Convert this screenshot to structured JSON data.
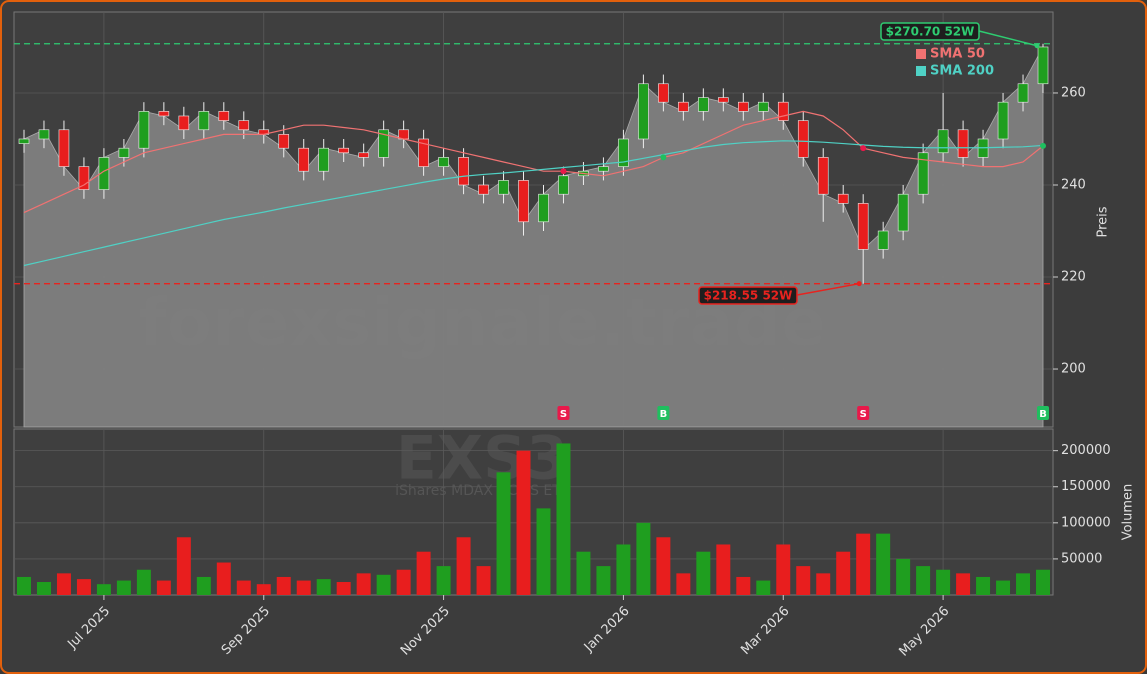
{
  "chart_data": {
    "type": "candlestick",
    "title": "EXS3",
    "subtitle": "iShares MDAX UCITS ETF",
    "watermark": "forexsignale.trade",
    "categories": [
      null,
      null,
      null,
      null,
      "Jul 2025",
      null,
      null,
      null,
      null,
      null,
      null,
      null,
      "Sep 2025",
      null,
      null,
      null,
      null,
      null,
      null,
      null,
      null,
      "Nov 2025",
      null,
      null,
      null,
      null,
      null,
      null,
      null,
      null,
      "Jan 2026",
      null,
      null,
      null,
      null,
      null,
      null,
      null,
      "Mar 2026",
      null,
      null,
      null,
      null,
      null,
      null,
      null,
      "May 2026",
      null,
      null,
      null,
      null,
      null
    ],
    "open": [
      249,
      250,
      252,
      244,
      239,
      246,
      248,
      256,
      255,
      252,
      256,
      254,
      252,
      251,
      248,
      243,
      248,
      247,
      246,
      252,
      250,
      244,
      246,
      240,
      238,
      241,
      232,
      238,
      242,
      243,
      244,
      250,
      262,
      258,
      256,
      259,
      258,
      256,
      258,
      254,
      246,
      238,
      236,
      226,
      230,
      238,
      247,
      252,
      246,
      250,
      258,
      262
    ],
    "high": [
      252,
      254,
      254,
      246,
      248,
      250,
      258,
      258,
      257,
      258,
      258,
      256,
      254,
      253,
      250,
      250,
      250,
      249,
      254,
      254,
      252,
      248,
      248,
      242,
      243,
      243,
      240,
      244,
      245,
      246,
      252,
      264,
      264,
      260,
      261,
      261,
      260,
      260,
      260,
      256,
      248,
      240,
      238,
      232,
      240,
      249,
      260,
      254,
      252,
      260,
      264,
      270.7
    ],
    "low": [
      247,
      248,
      242,
      237,
      237,
      244,
      246,
      253,
      250,
      250,
      252,
      250,
      249,
      246,
      241,
      241,
      245,
      244,
      244,
      248,
      242,
      242,
      238,
      236,
      236,
      229,
      230,
      236,
      240,
      241,
      242,
      248,
      256,
      254,
      254,
      256,
      254,
      254,
      252,
      244,
      232,
      234,
      218.55,
      224,
      228,
      236,
      245,
      244,
      244,
      248,
      256,
      260
    ],
    "close": [
      250,
      252,
      244,
      239,
      246,
      248,
      256,
      255,
      252,
      256,
      254,
      252,
      251,
      248,
      243,
      248,
      247,
      246,
      252,
      250,
      244,
      246,
      240,
      238,
      241,
      232,
      238,
      242,
      243,
      244,
      250,
      262,
      258,
      256,
      259,
      258,
      256,
      258,
      254,
      246,
      238,
      236,
      226,
      230,
      238,
      247,
      252,
      246,
      250,
      258,
      262,
      270
    ],
    "up_color": "#1f9e1f",
    "down_color": "#e81e1e",
    "area_color": "#808080",
    "ylim": [
      187.4,
      277.6
    ],
    "yticks": [
      200,
      220,
      240,
      260
    ],
    "ylabel": "Preis",
    "grid": true,
    "legend": "upper right",
    "series": [
      {
        "name": "SMA 50",
        "color": "#f07272",
        "values": [
          234,
          236,
          238,
          240,
          243,
          245,
          247,
          248,
          249,
          250,
          251,
          251,
          251,
          252,
          253,
          253,
          252.5,
          252,
          251,
          250,
          249,
          248,
          247,
          246,
          245,
          244,
          243,
          243,
          242.5,
          242,
          243,
          244,
          246,
          247,
          249,
          251,
          253,
          254,
          255,
          256,
          255,
          252,
          248,
          247,
          246,
          245.5,
          245,
          244.5,
          244,
          244,
          245,
          248.5
        ]
      },
      {
        "name": "SMA 200",
        "color": "#4fd1c5",
        "values": [
          222.5,
          223.5,
          224.5,
          225.5,
          226.5,
          227.5,
          228.5,
          229.5,
          230.5,
          231.5,
          232.5,
          233.3,
          234.1,
          235,
          235.8,
          236.6,
          237.4,
          238.2,
          239,
          239.8,
          240.6,
          241.3,
          241.9,
          242.3,
          242.6,
          243,
          243.4,
          243.8,
          244.2,
          244.6,
          245,
          245.8,
          246.6,
          247.4,
          248.2,
          248.8,
          249.2,
          249.4,
          249.6,
          249.5,
          249.3,
          249,
          248.7,
          248.4,
          248.2,
          248.1,
          248.1,
          248.1,
          248.1,
          248.2,
          248.3,
          248.6
        ]
      }
    ],
    "reference_lines": [
      {
        "value": 270.7,
        "label": "$270.70 52W",
        "color": "#2ecc71"
      },
      {
        "value": 218.55,
        "label": "$218.55 52W",
        "color": "#e8231f"
      }
    ],
    "signals": [
      {
        "at": 27,
        "label": "S",
        "color": "#e8194a"
      },
      {
        "at": 32,
        "label": "B",
        "color": "#1fbf5f"
      },
      {
        "at": 42,
        "label": "S",
        "color": "#e8194a"
      },
      {
        "at": 51,
        "label": "B",
        "color": "#1fbf5f"
      }
    ],
    "volume": {
      "values": [
        25000,
        18000,
        30000,
        22000,
        15000,
        20000,
        35000,
        20000,
        80000,
        25000,
        45000,
        20000,
        15000,
        25000,
        20000,
        22000,
        18000,
        30000,
        28000,
        35000,
        60000,
        40000,
        80000,
        40000,
        170000,
        200000,
        120000,
        210000,
        60000,
        40000,
        70000,
        100000,
        80000,
        30000,
        60000,
        70000,
        25000,
        20000,
        70000,
        40000,
        30000,
        60000,
        85000,
        85000,
        50000,
        40000,
        35000,
        30000,
        25000,
        20000,
        30000,
        35000
      ],
      "ylim": [
        0,
        230000
      ],
      "yticks": [
        50000,
        100000,
        150000,
        200000
      ],
      "ylabel": "Volumen"
    }
  }
}
